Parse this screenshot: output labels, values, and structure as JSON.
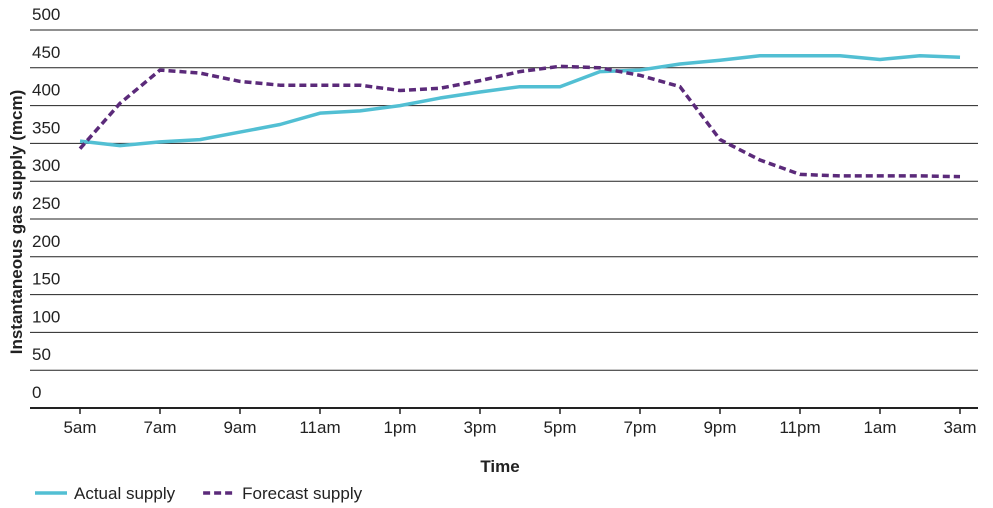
{
  "chart_data": {
    "type": "line",
    "x_label": "Time",
    "y_label": "Instantaneous gas supply (mcm)",
    "categories": [
      "5am",
      null,
      "7am",
      null,
      "9am",
      null,
      "11am",
      null,
      "1pm",
      null,
      "3pm",
      null,
      "5pm",
      null,
      "7pm",
      null,
      "9pm",
      null,
      "11pm",
      null,
      "1am",
      null,
      "3am"
    ],
    "series": [
      {
        "name": "Actual supply",
        "color": "#52bfd3",
        "dashed": false,
        "values": [
          353,
          347,
          352,
          355,
          365,
          375,
          390,
          393,
          400,
          410,
          418,
          425,
          425,
          445,
          447,
          455,
          460,
          466,
          466,
          466,
          461,
          466,
          464
        ]
      },
      {
        "name": "Forecast supply",
        "color": "#5b2a7a",
        "dashed": true,
        "values": [
          343,
          403,
          447,
          443,
          432,
          427,
          427,
          427,
          420,
          423,
          433,
          445,
          452,
          450,
          440,
          425,
          355,
          328,
          309,
          307,
          307,
          307,
          306
        ]
      }
    ],
    "ylim": [
      0,
      500
    ],
    "yticks": [
      0,
      50,
      100,
      150,
      200,
      250,
      300,
      350,
      400,
      450,
      500
    ],
    "grid": true,
    "legend": "bottom-left"
  }
}
